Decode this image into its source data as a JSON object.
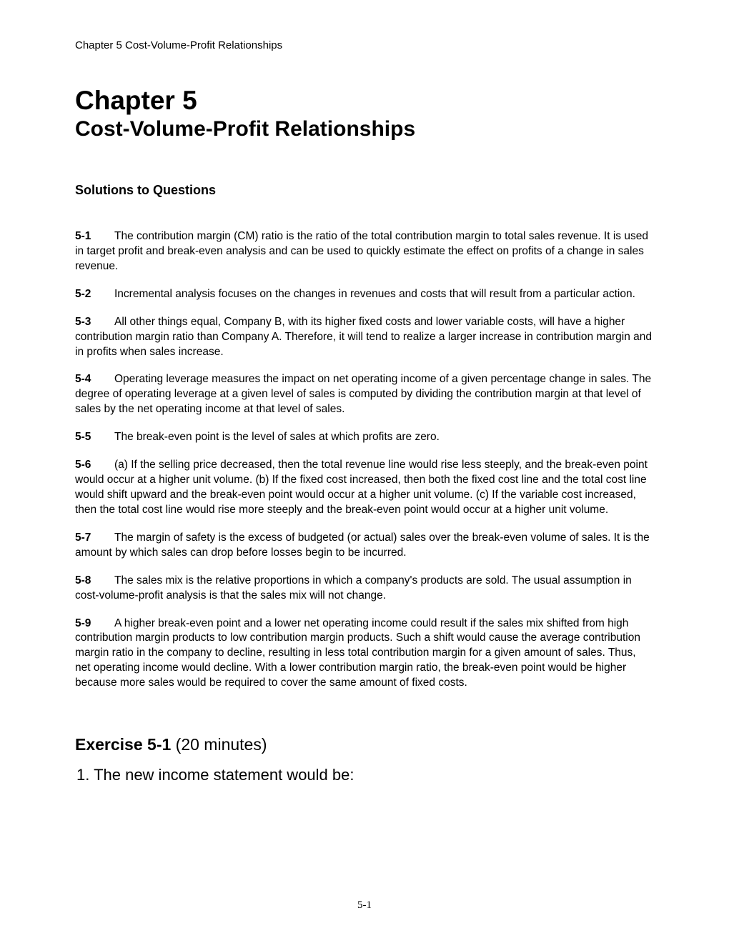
{
  "header": "Chapter 5 Cost-Volume-Profit Relationships",
  "chapter_title": "Chapter 5",
  "chapter_subtitle": "Cost-Volume-Profit Relationships",
  "solutions_heading": "Solutions to Questions",
  "questions": [
    {
      "num": "5-1",
      "text": "The contribution margin (CM) ratio is the ratio of the total contribution margin to total sales revenue. It is used in target profit and break-even analysis and can be used to quickly estimate the effect on profits of a change in sales revenue."
    },
    {
      "num": "5-2",
      "text": "Incremental analysis focuses on the changes in revenues and costs that will result from a particular action."
    },
    {
      "num": "5-3",
      "text": "All other things equal, Company B, with its higher fixed costs and lower variable costs, will have a higher contribution margin ratio than Company A. Therefore, it will tend to realize a larger increase in contribution margin and in profits when sales increase."
    },
    {
      "num": "5-4",
      "text": "Operating leverage measures the impact on net operating income of a given percentage change in sales. The degree of operating leverage at a given level of sales is computed by dividing the contribution margin at that level of sales by the net operating income at that level of sales."
    },
    {
      "num": "5-5",
      "text": "The break-even point is the level of sales at which profits are zero."
    },
    {
      "num": "5-6",
      "text": "(a) If the selling price decreased, then the total revenue line would rise less steeply, and the break-even point would occur at a higher unit volume. (b) If the fixed cost increased, then both the fixed cost line and the total cost line would shift upward and the break-even point would occur at a higher unit volume. (c) If the variable cost increased, then the total cost line would rise more steeply and the break-even point would occur at a higher unit volume."
    },
    {
      "num": "5-7",
      "text": "The margin of safety is the excess of budgeted (or actual) sales over the break-even volume of sales. It is the amount by which sales can drop before losses begin to be incurred."
    },
    {
      "num": "5-8",
      "text": "The sales mix is the relative proportions in which a company's products are sold. The usual assumption in cost-volume-profit analysis is that the sales mix will not change."
    },
    {
      "num": "5-9",
      "text": "A higher break-even point and a lower net operating income could result if the sales mix shifted from high contribution margin products to low contribution margin products. Such a shift would cause the average contribution margin ratio in the company to decline, resulting in less total contribution margin for a given amount of sales. Thus, net operating income would decline. With a lower contribution margin ratio, the break-even point would be higher because more sales would be required to cover the same amount of fixed costs."
    }
  ],
  "exercise": {
    "title": "Exercise 5-1",
    "duration": "(20 minutes)",
    "item": "1. The new income statement would be:"
  },
  "page_number": "5-1"
}
